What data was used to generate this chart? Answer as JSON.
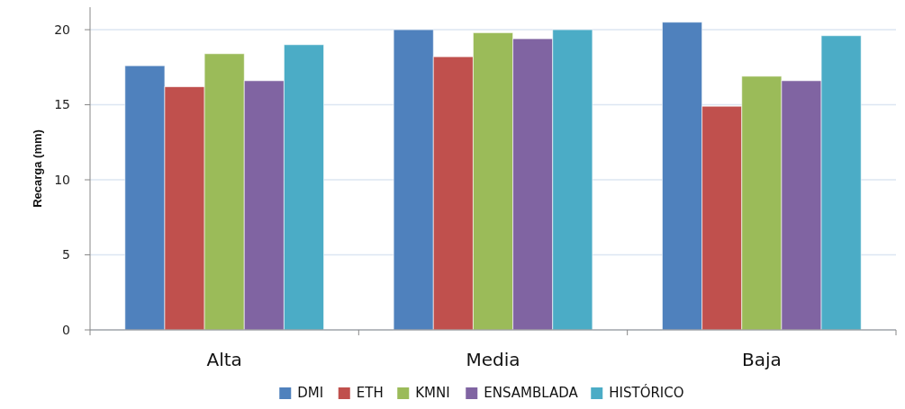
{
  "chart_data": {
    "type": "bar",
    "ylabel": "Recarga (mm)",
    "categories": [
      "Alta",
      "Media",
      "Baja"
    ],
    "series": [
      {
        "name": "DMI",
        "color": "#4f81bd",
        "values": [
          17.6,
          20.0,
          20.5
        ]
      },
      {
        "name": "ETH",
        "color": "#c0504d",
        "values": [
          16.2,
          18.2,
          14.9
        ]
      },
      {
        "name": "KMNI",
        "color": "#9bbb59",
        "values": [
          18.4,
          19.8,
          16.9
        ]
      },
      {
        "name": "ENSAMBLADA",
        "color": "#8064a2",
        "values": [
          16.6,
          19.4,
          16.6
        ]
      },
      {
        "name": "HISTÓRICO",
        "color": "#4bacc6",
        "values": [
          19.0,
          20.0,
          19.6
        ]
      }
    ],
    "ylim": [
      0,
      21.5
    ],
    "yticks": [
      0,
      5,
      10,
      15,
      20
    ],
    "grid": "y",
    "legend": "bottom"
  }
}
